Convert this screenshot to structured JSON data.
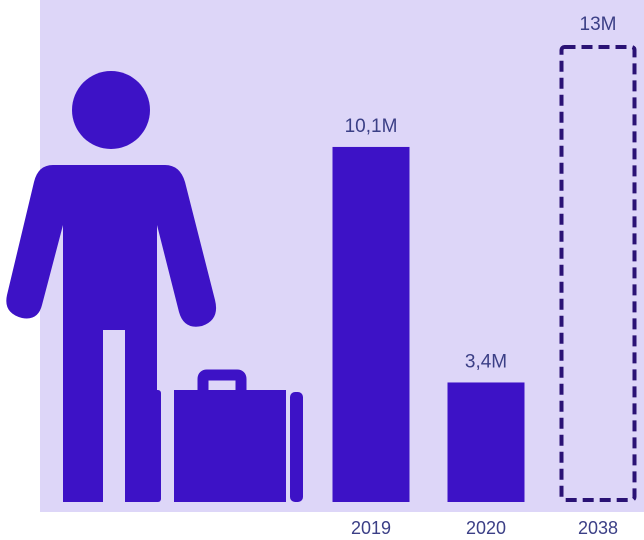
{
  "colors": {
    "panel": "#ddd6f8",
    "bar": "#3d12c6",
    "dashed": "#2a1275",
    "label": "#3b3f86"
  },
  "chart_data": {
    "type": "bar",
    "categories": [
      "2019",
      "2020",
      "2038"
    ],
    "values": [
      10.1,
      3.4,
      13
    ],
    "value_labels": [
      "10,1M",
      "3,4M",
      "13M"
    ],
    "projected": [
      false,
      false,
      true
    ],
    "title": "",
    "xlabel": "",
    "ylabel": "",
    "ylim": [
      0,
      13
    ]
  },
  "icons": [
    "person-icon",
    "suitcase-icon"
  ]
}
